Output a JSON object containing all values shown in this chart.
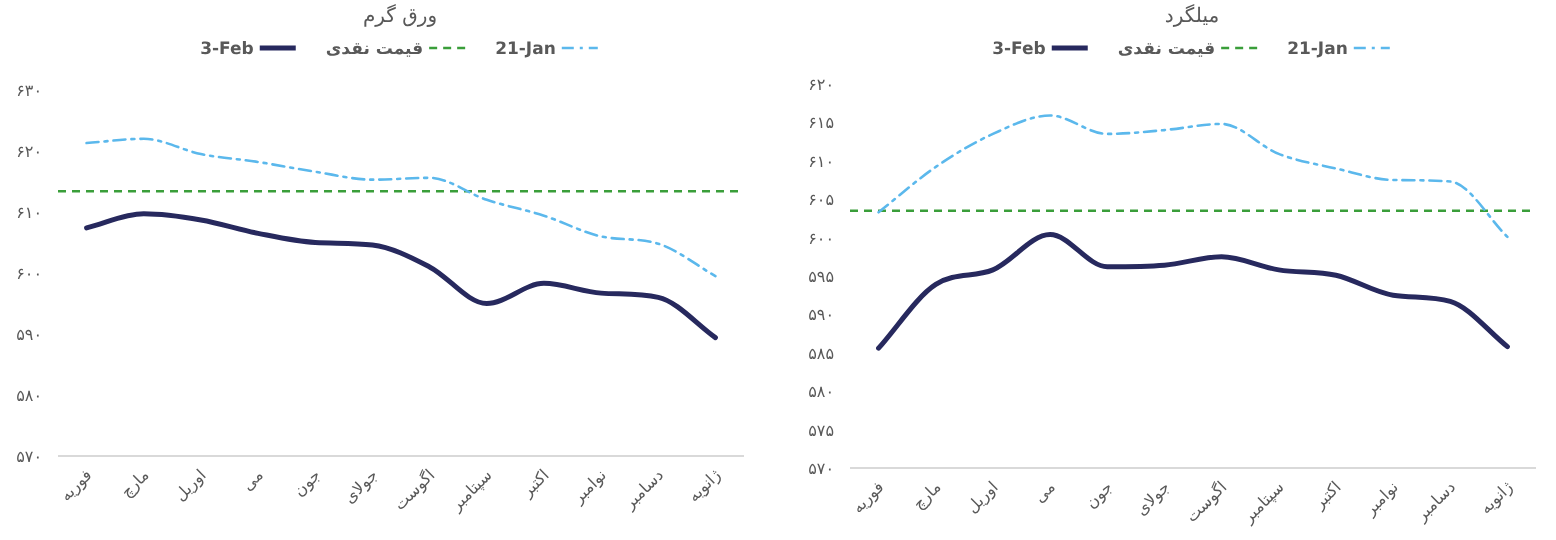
{
  "chart_data": [
    {
      "type": "line",
      "title": "ورق گرم",
      "legend": "top",
      "categories": [
        "فوریه",
        "مارچ",
        "اوریل",
        "می",
        "جون",
        "جولای",
        "اگوست",
        "سپتامبر",
        "اکتبر",
        "نوامبر",
        "دسامبر",
        "ژانویه"
      ],
      "ylim": [
        570,
        630
      ],
      "yticks": [
        {
          "value": 570,
          "label": "۵۷۰"
        },
        {
          "value": 580,
          "label": "۵۸۰"
        },
        {
          "value": 590,
          "label": "۵۹۰"
        },
        {
          "value": 600,
          "label": "۶۰۰"
        },
        {
          "value": 610,
          "label": "۶۱۰"
        },
        {
          "value": 620,
          "label": "۶۲۰"
        },
        {
          "value": 630,
          "label": "۶۳۰"
        }
      ],
      "series": [
        {
          "name": "3-Feb",
          "color": "#27295e",
          "line_style": "solid",
          "values": [
            607.4,
            609.7,
            608.7,
            606.5,
            605,
            604.6,
            601,
            595,
            598.3,
            596.7,
            596,
            589.4
          ]
        },
        {
          "name": "21-Jan",
          "color": "#5bb8ec",
          "line_style": "dashdot",
          "values": [
            621.3,
            622,
            619.5,
            618.2,
            616.6,
            615.3,
            615.6,
            612,
            609.4,
            606,
            604.8,
            599.5
          ]
        }
      ],
      "ref_lines": [
        {
          "axis": "y",
          "value": 613.4,
          "label": "قیمت نقدی",
          "color": "#3a9e3a",
          "line_style": "dashed"
        }
      ]
    },
    {
      "type": "line",
      "title": "میلگرد",
      "legend": "top",
      "categories": [
        "فوریه",
        "مارچ",
        "اوریل",
        "می",
        "جون",
        "جولای",
        "اگوست",
        "سپتامبر",
        "اکتبر",
        "نوامبر",
        "دسامبر",
        "ژانویه"
      ],
      "ylim": [
        570,
        620
      ],
      "yticks": [
        {
          "value": 570,
          "label": "۵۷۰"
        },
        {
          "value": 575,
          "label": "۵۷۵"
        },
        {
          "value": 580,
          "label": "۵۸۰"
        },
        {
          "value": 585,
          "label": "۵۸۵"
        },
        {
          "value": 590,
          "label": "۵۹۰"
        },
        {
          "value": 595,
          "label": "۵۹۵"
        },
        {
          "value": 600,
          "label": "۶۰۰"
        },
        {
          "value": 605,
          "label": "۶۰۵"
        },
        {
          "value": 610,
          "label": "۶۱۰"
        },
        {
          "value": 615,
          "label": "۶۱۵"
        },
        {
          "value": 620,
          "label": "۶۲۰"
        }
      ],
      "series": [
        {
          "name": "3-Feb",
          "color": "#27295e",
          "line_style": "solid",
          "values": [
            585.6,
            593.9,
            595.8,
            600.4,
            596.2,
            596.4,
            597.5,
            595.8,
            595.1,
            592.5,
            591.7,
            585.8
          ]
        },
        {
          "name": "21-Jan",
          "color": "#5bb8ec",
          "line_style": "dashdot",
          "values": [
            603.3,
            609.2,
            613.5,
            615.9,
            613.5,
            614,
            614.8,
            610.9,
            609,
            607.5,
            607.3,
            600.1
          ]
        }
      ],
      "ref_lines": [
        {
          "axis": "y",
          "value": 603.5,
          "label": "قیمت نقدی",
          "color": "#3a9e3a",
          "line_style": "dashed"
        }
      ]
    }
  ]
}
